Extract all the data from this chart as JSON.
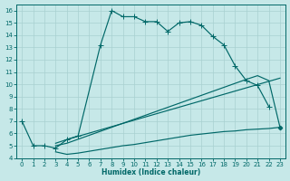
{
  "xlabel": "Humidex (Indice chaleur)",
  "bg_color": "#c6e8e8",
  "grid_color": "#a8d0d0",
  "line_color": "#006868",
  "xlim": [
    -0.5,
    23.5
  ],
  "ylim": [
    4,
    16.5
  ],
  "xticks": [
    0,
    1,
    2,
    3,
    4,
    5,
    6,
    7,
    8,
    9,
    10,
    11,
    12,
    13,
    14,
    15,
    16,
    17,
    18,
    19,
    20,
    21,
    22,
    23
  ],
  "yticks": [
    4,
    5,
    6,
    7,
    8,
    9,
    10,
    11,
    12,
    13,
    14,
    15,
    16
  ],
  "line1_x": [
    0,
    1,
    2,
    3,
    4,
    5,
    7,
    8,
    9,
    10,
    11,
    12,
    13,
    14,
    15,
    16,
    17,
    18,
    19,
    20,
    21,
    22
  ],
  "line1_y": [
    7.0,
    5.0,
    5.0,
    4.8,
    5.5,
    5.8,
    13.2,
    16.0,
    15.5,
    15.5,
    15.1,
    15.1,
    14.3,
    15.0,
    15.1,
    14.8,
    13.9,
    13.2,
    11.5,
    10.3,
    9.9,
    8.2
  ],
  "line2_x": [
    3,
    4,
    23
  ],
  "line2_y": [
    5.2,
    5.5,
    10.5
  ],
  "line3_x": [
    3,
    4,
    20,
    21,
    22,
    23
  ],
  "line3_y": [
    5.0,
    5.2,
    10.4,
    10.7,
    10.3,
    6.5
  ],
  "line4_x": [
    3,
    4,
    5,
    6,
    7,
    8,
    9,
    10,
    11,
    12,
    13,
    14,
    15,
    16,
    17,
    18,
    19,
    20,
    21,
    22,
    23
  ],
  "line4_y": [
    4.5,
    4.3,
    4.4,
    4.55,
    4.7,
    4.85,
    5.0,
    5.1,
    5.25,
    5.4,
    5.55,
    5.7,
    5.85,
    5.95,
    6.05,
    6.15,
    6.2,
    6.3,
    6.35,
    6.4,
    6.5
  ]
}
